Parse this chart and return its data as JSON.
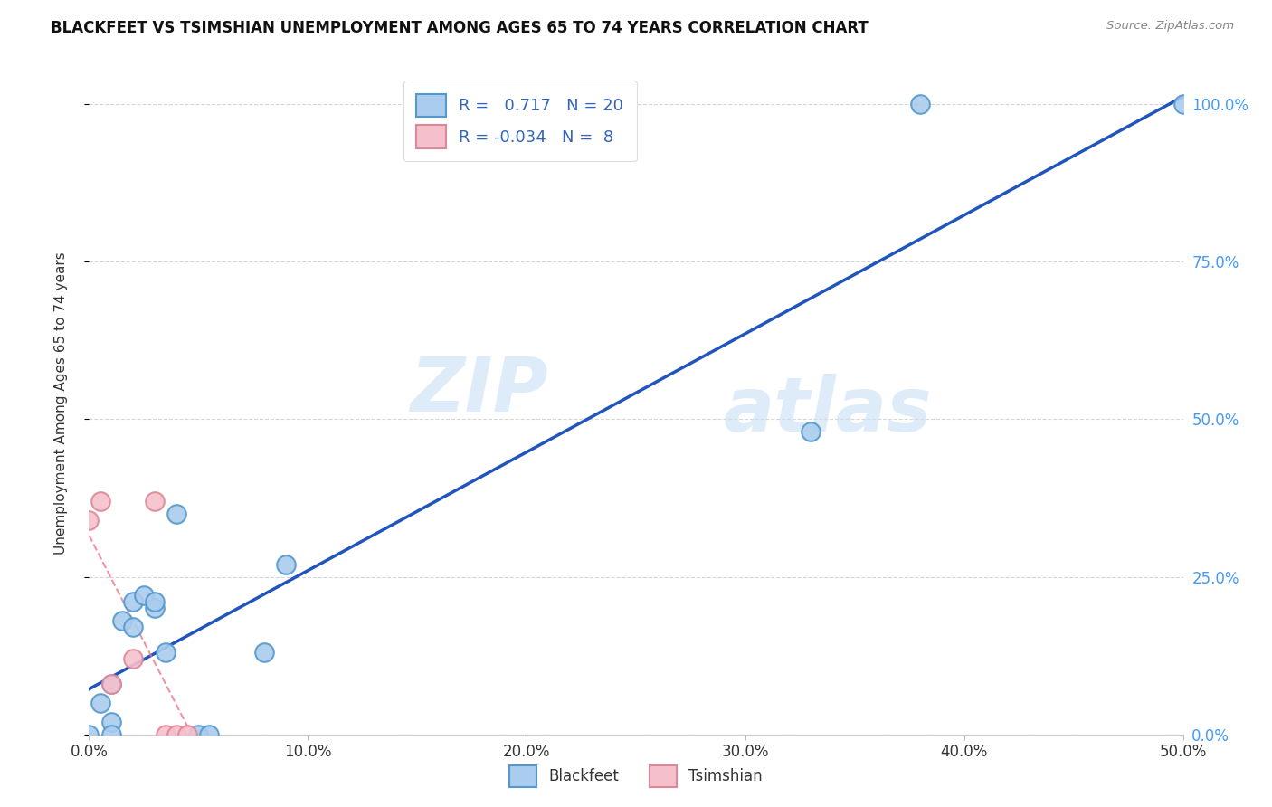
{
  "title": "BLACKFEET VS TSIMSHIAN UNEMPLOYMENT AMONG AGES 65 TO 74 YEARS CORRELATION CHART",
  "source": "Source: ZipAtlas.com",
  "ylabel": "Unemployment Among Ages 65 to 74 years",
  "blackfeet_x": [
    0.0,
    0.005,
    0.01,
    0.01,
    0.01,
    0.015,
    0.02,
    0.02,
    0.025,
    0.03,
    0.03,
    0.035,
    0.04,
    0.05,
    0.055,
    0.08,
    0.09,
    0.33,
    0.38,
    0.5
  ],
  "blackfeet_y": [
    0.0,
    0.05,
    0.02,
    0.0,
    0.08,
    0.18,
    0.21,
    0.17,
    0.22,
    0.2,
    0.21,
    0.13,
    0.35,
    0.0,
    0.0,
    0.13,
    0.27,
    0.48,
    1.0,
    1.0
  ],
  "tsimshian_x": [
    0.0,
    0.005,
    0.01,
    0.02,
    0.03,
    0.035,
    0.04,
    0.045
  ],
  "tsimshian_y": [
    0.34,
    0.37,
    0.08,
    0.12,
    0.37,
    0.0,
    0.0,
    0.0
  ],
  "blackfeet_R": 0.717,
  "blackfeet_N": 20,
  "tsimshian_R": -0.034,
  "tsimshian_N": 8,
  "blackfeet_color": "#aaccee",
  "blackfeet_edge": "#5599cc",
  "blackfeet_line": "#2255bb",
  "tsimshian_color": "#f5c0cc",
  "tsimshian_edge": "#dd8899",
  "tsimshian_line": "#ee7788",
  "xlim": [
    0.0,
    0.5
  ],
  "ylim": [
    0.0,
    1.05
  ],
  "xtick_vals": [
    0.0,
    0.1,
    0.2,
    0.3,
    0.4,
    0.5
  ],
  "ytick_vals": [
    0.0,
    0.25,
    0.5,
    0.75,
    1.0
  ],
  "background_color": "#ffffff",
  "watermark_zip": "ZIP",
  "watermark_atlas": "atlas",
  "grid_color": "#cccccc"
}
